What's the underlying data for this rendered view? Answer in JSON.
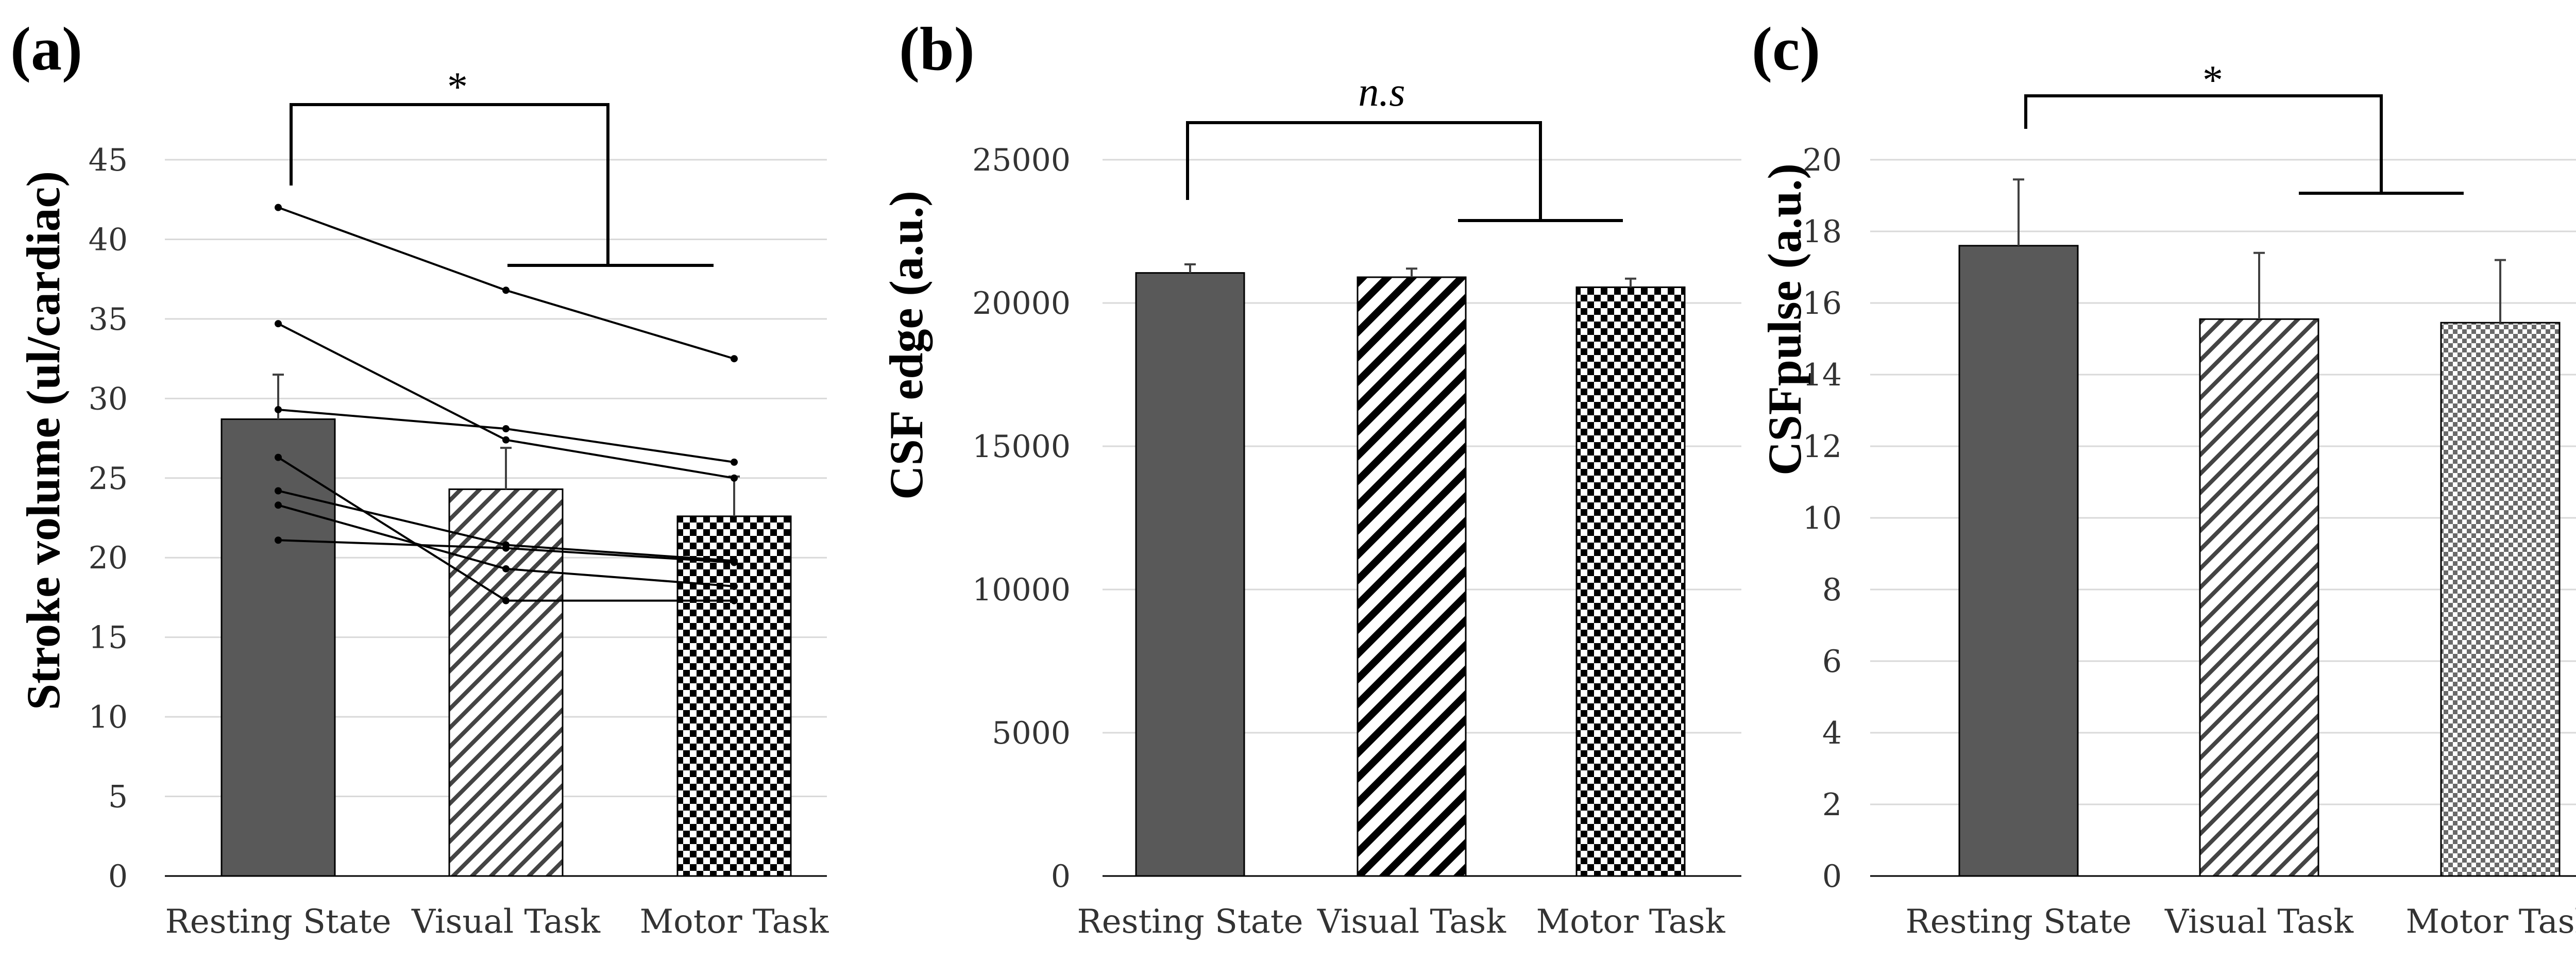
{
  "chart_data": [
    {
      "type": "bar",
      "panel_label": "(a)",
      "title": "",
      "xlabel": "",
      "ylabel": "Stroke volume (ul/cardiac)",
      "categories": [
        "Resting State",
        "Visual Task",
        "Motor Task"
      ],
      "values": [
        28.7,
        24.3,
        22.6
      ],
      "errors": [
        2.8,
        2.6,
        2.5
      ],
      "ylim": [
        0,
        45
      ],
      "yticks": [
        0,
        5,
        10,
        15,
        20,
        25,
        30,
        35,
        40,
        45
      ],
      "grid": true,
      "significance": "*",
      "subjects": [
        [
          42.0,
          36.8,
          32.5
        ],
        [
          34.7,
          27.4,
          25.0
        ],
        [
          29.3,
          28.1,
          26.0
        ],
        [
          26.3,
          17.3,
          17.3
        ],
        [
          24.2,
          20.8,
          19.8
        ],
        [
          23.3,
          19.3,
          18.2
        ],
        [
          21.1,
          20.6,
          19.7
        ]
      ]
    },
    {
      "type": "bar",
      "panel_label": "(b)",
      "title": "",
      "xlabel": "",
      "ylabel": "CSF edge (a.u.)",
      "categories": [
        "Resting State",
        "Visual Task",
        "Motor Task"
      ],
      "values": [
        21050,
        20900,
        20550
      ],
      "errors": [
        300,
        300,
        300
      ],
      "ylim": [
        0,
        25000
      ],
      "yticks": [
        0,
        5000,
        10000,
        15000,
        20000,
        25000
      ],
      "grid": true,
      "significance": "n.s"
    },
    {
      "type": "bar",
      "panel_label": "(c)",
      "title": "",
      "xlabel": "",
      "ylabel": "CSFpulse (a.u.)",
      "categories": [
        "Resting State",
        "Visual Task",
        "Motor Task"
      ],
      "values": [
        17.6,
        15.55,
        15.45
      ],
      "errors": [
        1.85,
        1.85,
        1.75
      ],
      "ylim": [
        0,
        20
      ],
      "yticks": [
        0,
        2,
        4,
        6,
        8,
        10,
        12,
        14,
        16,
        18,
        20
      ],
      "grid": true,
      "significance": "*"
    }
  ]
}
